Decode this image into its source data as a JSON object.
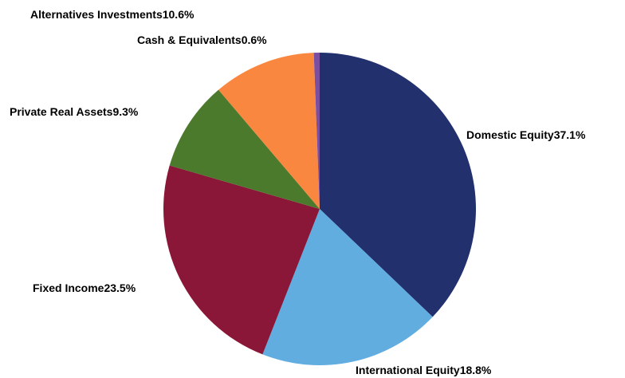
{
  "chart_data": {
    "type": "pie",
    "categories": [
      "Domestic Equity",
      "International Equity",
      "Fixed Income",
      "Private Real Assets",
      "Alternatives Investments",
      "Cash & Equivalents"
    ],
    "values": [
      37.1,
      18.8,
      23.5,
      9.3,
      10.6,
      0.6
    ],
    "value_labels": [
      "37.1%",
      "18.8%",
      "23.5%",
      "9.3%",
      "10.6%",
      "0.6%"
    ],
    "colors": [
      "#22316e",
      "#62ade0",
      "#8a1638",
      "#4c7a2c",
      "#f98740",
      "#7a4ea0"
    ]
  }
}
